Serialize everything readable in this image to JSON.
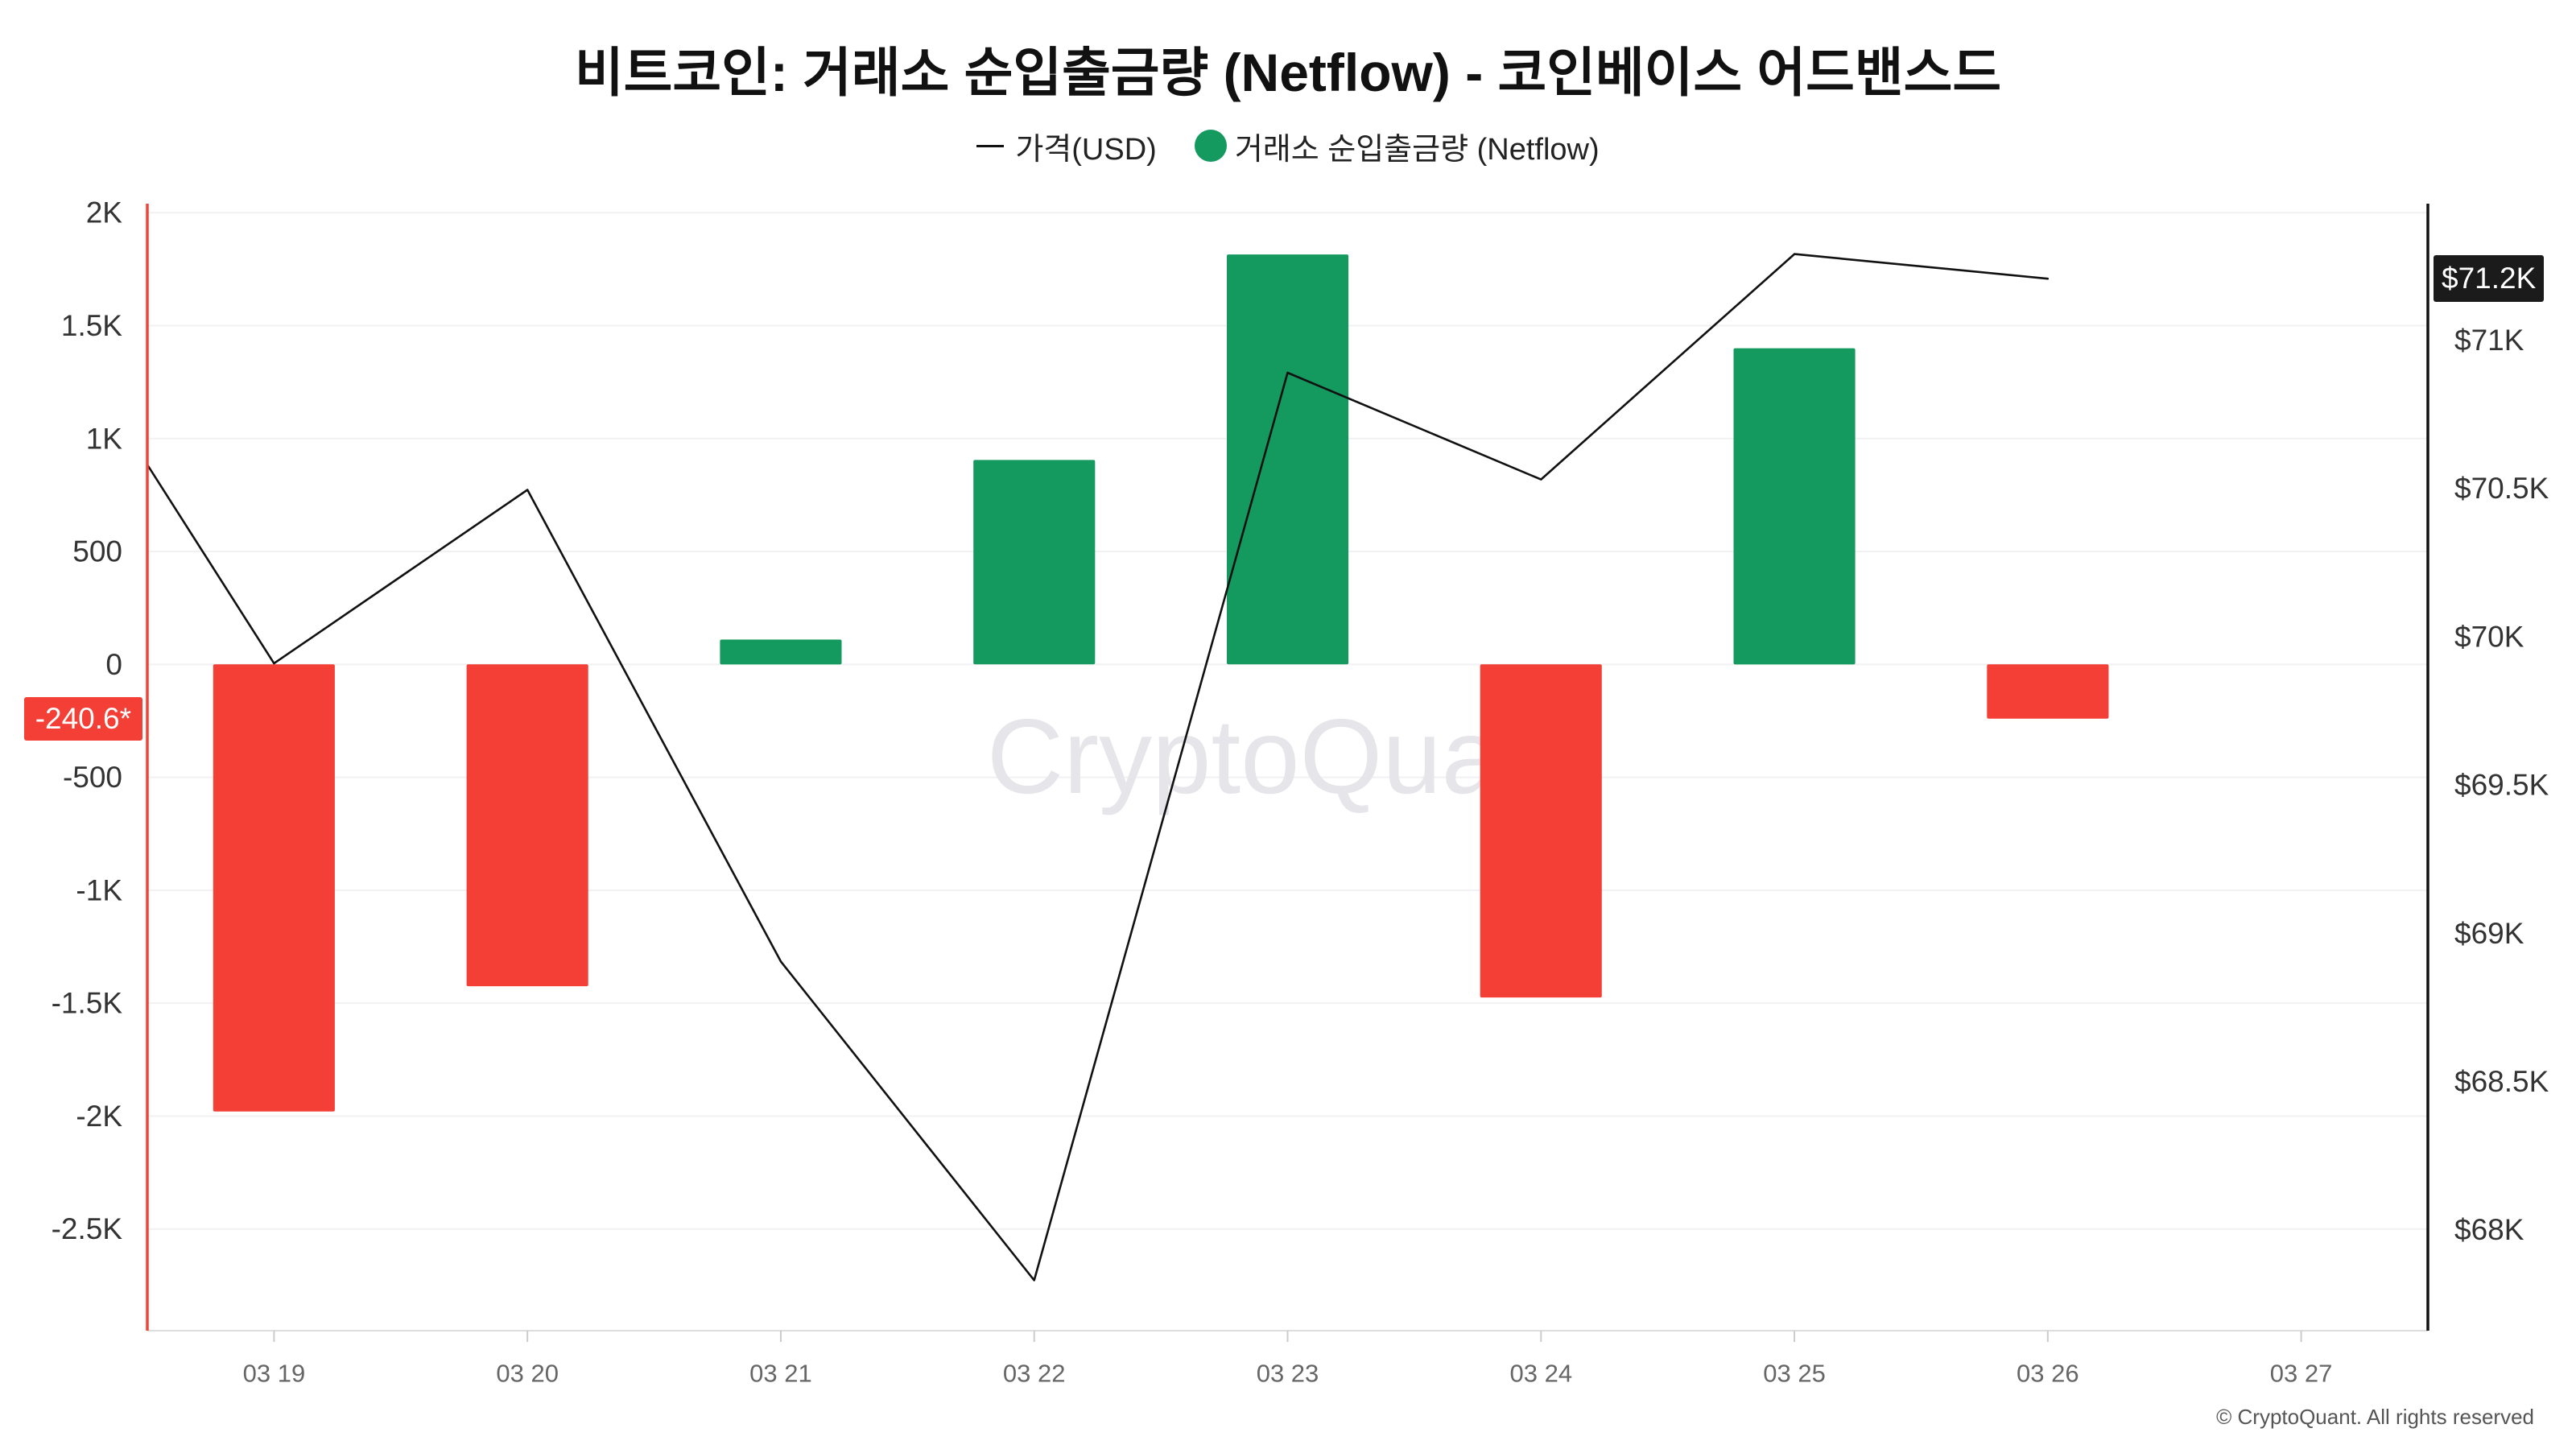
{
  "chart_data": {
    "type": "bar",
    "title": "비트코인: 거래소 순입출금량 (Netflow) - 코인베이스 어드밴스드",
    "categories": [
      "03 19",
      "03 20",
      "03 21",
      "03 22",
      "03 23",
      "03 24",
      "03 25",
      "03 26",
      "03 27"
    ],
    "series": [
      {
        "name": "거래소 순입출금량 (Netflow)",
        "type": "bar",
        "axis": "left",
        "values": [
          -1980,
          -1425,
          110,
          905,
          1815,
          -1475,
          1400,
          -240.6,
          null
        ],
        "color_positive": "#14995E",
        "color_negative": "#F43F36"
      },
      {
        "name": "가격(USD)",
        "type": "line",
        "axis": "right",
        "color": "#111111",
        "points": [
          {
            "x": "03 18",
            "y": 71250
          },
          {
            "x": "03 19",
            "y": 69910
          },
          {
            "x": "03 20",
            "y": 70495
          },
          {
            "x": "03 21",
            "y": 68905
          },
          {
            "x": "03 22",
            "y": 67830
          },
          {
            "x": "03 23",
            "y": 70890
          },
          {
            "x": "03 24",
            "y": 70530
          },
          {
            "x": "03 25",
            "y": 71290
          },
          {
            "x": "03 26",
            "y": 71207
          }
        ]
      }
    ],
    "y_left": {
      "ylim": [
        -2950,
        2040
      ],
      "line_color": "#F44336",
      "ticks": [
        {
          "value": 2000,
          "label": "2K"
        },
        {
          "value": 1500,
          "label": "1.5K"
        },
        {
          "value": 1000,
          "label": "1K"
        },
        {
          "value": 500,
          "label": "500"
        },
        {
          "value": 0,
          "label": "0"
        },
        {
          "value": -500,
          "label": "-500"
        },
        {
          "value": -1000,
          "label": "-1K"
        },
        {
          "value": -1500,
          "label": "-1.5K"
        },
        {
          "value": -2000,
          "label": "-2K"
        },
        {
          "value": -2500,
          "label": "-2.5K"
        }
      ]
    },
    "y_right": {
      "ylim": [
        67660,
        71460
      ],
      "line_color": "#111111",
      "ticks": [
        {
          "value": 71000,
          "label": "$71K"
        },
        {
          "value": 70500,
          "label": "$70.5K"
        },
        {
          "value": 70000,
          "label": "$70K"
        },
        {
          "value": 69500,
          "label": "$69.5K"
        },
        {
          "value": 69000,
          "label": "$69K"
        },
        {
          "value": 68500,
          "label": "$68.5K"
        },
        {
          "value": 68000,
          "label": "$68K"
        }
      ]
    },
    "last_value_badges": {
      "left": "-240.6*",
      "right": "$71.2K"
    },
    "grid": true,
    "legend": "top-center"
  },
  "watermark": "CryptoQuant",
  "copyright": "© CryptoQuant. All rights reserved"
}
